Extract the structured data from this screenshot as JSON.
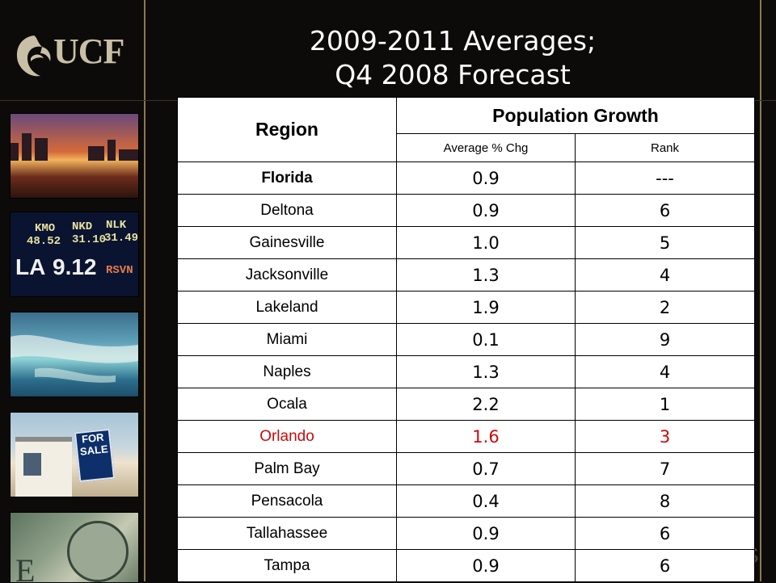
{
  "title": {
    "line1": "2009-2011 Averages;",
    "line2": "Q4 2008 Forecast"
  },
  "logo": {
    "text": "UCF"
  },
  "decor": {
    "ticker": {
      "row1": [
        "KMO",
        "NKD",
        "NLK"
      ],
      "row2": [
        "48.52",
        "31.10",
        "31.49"
      ],
      "row3": [
        "LA",
        "9.12",
        "RSVN"
      ]
    },
    "sign": "FOR SALE",
    "corner": "S"
  },
  "table": {
    "headers": {
      "region": "Region",
      "group": "Population Growth",
      "avg": "Average % Chg",
      "rank": "Rank"
    },
    "rows": [
      {
        "region": "Florida",
        "avg": "0.9",
        "rank": "---"
      },
      {
        "region": "Deltona",
        "avg": "0.9",
        "rank": "6"
      },
      {
        "region": "Gainesville",
        "avg": "1.0",
        "rank": "5"
      },
      {
        "region": "Jacksonville",
        "avg": "1.3",
        "rank": "4"
      },
      {
        "region": "Lakeland",
        "avg": "1.9",
        "rank": "2"
      },
      {
        "region": "Miami",
        "avg": "0.1",
        "rank": "9"
      },
      {
        "region": "Naples",
        "avg": "1.3",
        "rank": "4"
      },
      {
        "region": "Ocala",
        "avg": "2.2",
        "rank": "1"
      },
      {
        "region": "Orlando",
        "avg": "1.6",
        "rank": "3"
      },
      {
        "region": "Palm Bay",
        "avg": "0.7",
        "rank": "7"
      },
      {
        "region": "Pensacola",
        "avg": "0.4",
        "rank": "8"
      },
      {
        "region": "Tallahassee",
        "avg": "0.9",
        "rank": "6"
      },
      {
        "region": "Tampa",
        "avg": "0.9",
        "rank": "6"
      }
    ]
  },
  "colors": {
    "background": "#0c0b09",
    "accent_line": "#8b7a4c",
    "highlight": "#cc0a0a"
  }
}
